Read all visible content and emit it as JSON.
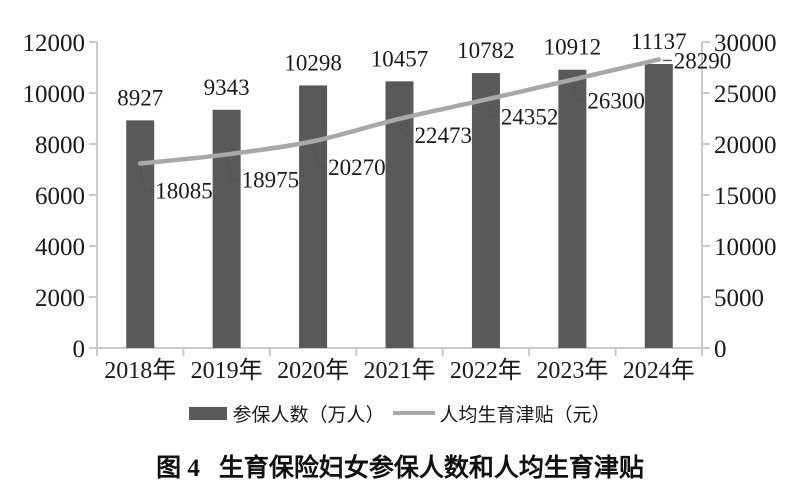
{
  "figure": {
    "number": "图 4",
    "title": "生育保险妇女参保人数和人均生育津贴"
  },
  "legend": {
    "bar_label": "参保人数（万人）",
    "line_label": "人均生育津贴（元）"
  },
  "chart_data": {
    "type": "bar+line combo",
    "categories": [
      "2018年",
      "2019年",
      "2020年",
      "2021年",
      "2022年",
      "2023年",
      "2024年"
    ],
    "series": [
      {
        "name": "参保人数（万人）",
        "type": "bar",
        "axis": "left",
        "values": [
          8927,
          9343,
          10298,
          10457,
          10782,
          10912,
          11137
        ],
        "color": "#595959"
      },
      {
        "name": "人均生育津贴（元）",
        "type": "line",
        "axis": "right",
        "values": [
          18085,
          18975,
          20270,
          22473,
          24352,
          26300,
          28290
        ],
        "color": "#a8a8a8"
      }
    ],
    "left_axis": {
      "min": 0,
      "max": 12000,
      "step": 2000,
      "ticks": [
        "0",
        "2000",
        "4000",
        "6000",
        "8000",
        "10000",
        "12000"
      ]
    },
    "right_axis": {
      "min": 0,
      "max": 30000,
      "step": 5000,
      "ticks": [
        "0",
        "5000",
        "10000",
        "15000",
        "20000",
        "25000",
        "30000"
      ]
    },
    "grid": false,
    "legend_position": "bottom",
    "colors": {
      "bar": "#595959",
      "line": "#a8a8a8",
      "axis": "#c9c9c9",
      "leader": "#545454",
      "text": "#1a1a1a"
    }
  }
}
